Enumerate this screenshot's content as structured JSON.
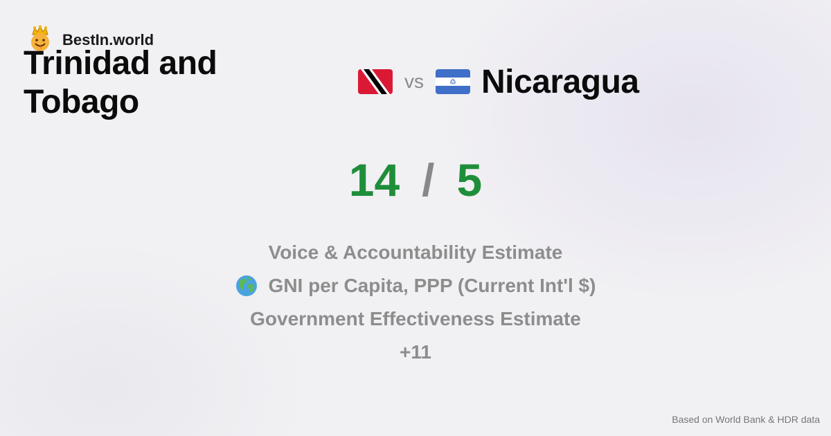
{
  "brand": {
    "name": "BestIn.world",
    "icon": "crown-face-icon"
  },
  "comparison": {
    "left_country": "Trinidad and Tobago",
    "left_flag": "trinidad-tobago-flag",
    "vs": "vs",
    "right_country": "Nicaragua",
    "right_flag": "nicaragua-flag"
  },
  "score": {
    "left": "14",
    "separator": "/",
    "right": "5",
    "color": "#1f8e3a"
  },
  "metrics": [
    {
      "label": "Voice & Accountability Estimate"
    },
    {
      "label": "GNI per Capita, PPP (Current Int'l $)",
      "icon": "globe-icon"
    },
    {
      "label": "Government Effectiveness Estimate"
    },
    {
      "label": "+11"
    }
  ],
  "footer": {
    "source": "Based on World Bank & HDR data"
  }
}
